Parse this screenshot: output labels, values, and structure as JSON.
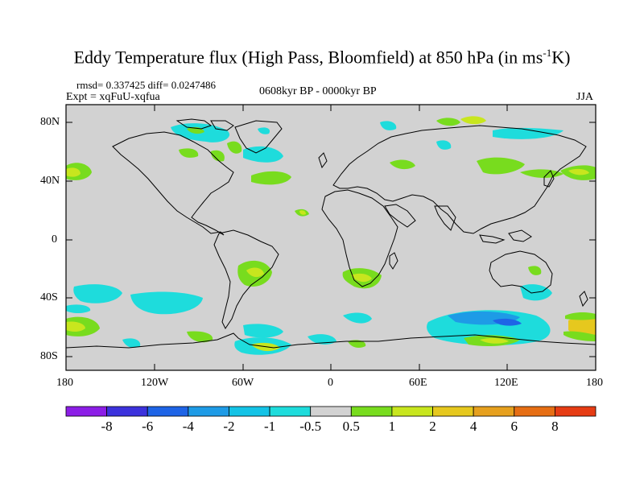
{
  "title": {
    "prefix": "Eddy Temperature flux (High Pass, Bloomfield) at 850 hPa (in ms",
    "sup": "-1",
    "suffix": "K)"
  },
  "stats": {
    "rmsd_diff": "rmsd= 0.337425 diff= 0.0247486",
    "expt": "Expt = xqFuU-xqfua",
    "period": "0608kyr BP - 0000kyr BP",
    "season": "JJA"
  },
  "axes": {
    "y_ticks": [
      "80N",
      "40N",
      "0",
      "40S",
      "80S"
    ],
    "x_ticks": [
      "180",
      "120W",
      "60W",
      "0",
      "60E",
      "120E",
      "180"
    ]
  },
  "colorbar": {
    "labels": [
      "-8",
      "-6",
      "-4",
      "-2",
      "-1",
      "-0.5",
      "0.5",
      "1",
      "2",
      "4",
      "6",
      "8"
    ],
    "colors": [
      "#8c1ee6",
      "#3c32dc",
      "#1e64e6",
      "#1e9be6",
      "#14c3e6",
      "#1edcdc",
      "#d2d2d2",
      "#78dc1e",
      "#c8e61e",
      "#e6c81e",
      "#e6a01e",
      "#e66e14",
      "#e63c14"
    ]
  },
  "chart_data": {
    "type": "heatmap",
    "title": "Eddy Temperature flux (High Pass, Bloomfield) at 850 hPa (in ms-1K)",
    "xlim": [
      -180,
      180
    ],
    "ylim": [
      -90,
      90
    ],
    "levels": [
      -8,
      -6,
      -4,
      -2,
      -1,
      -0.5,
      0.5,
      1,
      2,
      4,
      6,
      8
    ],
    "rmsd": 0.337425,
    "diff": 0.0247486
  }
}
